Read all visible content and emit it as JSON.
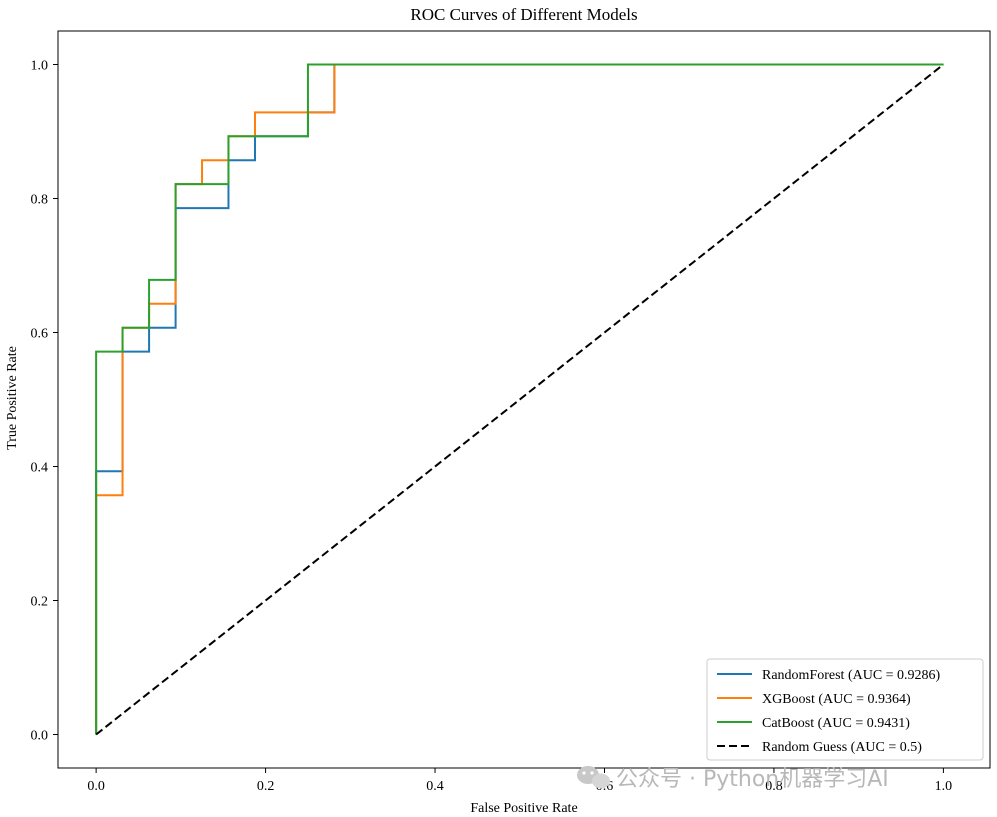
{
  "chart_data": {
    "type": "line",
    "title": "ROC Curves of Different Models",
    "xlabel": "False Positive Rate",
    "ylabel": "True Positive Rate",
    "xlim": [
      -0.045,
      1.055
    ],
    "ylim": [
      -0.05,
      1.05
    ],
    "xticks": [
      0.0,
      0.2,
      0.4,
      0.6,
      0.8,
      1.0
    ],
    "yticks": [
      0.0,
      0.2,
      0.4,
      0.6,
      0.8,
      1.0
    ],
    "tick_labels_x": [
      "0.0",
      "0.2",
      "0.4",
      "0.6",
      "0.8",
      "1.0"
    ],
    "tick_labels_y": [
      "0.0",
      "0.2",
      "0.4",
      "0.6",
      "0.8",
      "1.0"
    ],
    "grid": false,
    "legend_position": "bottom-right",
    "series": [
      {
        "name": "RandomForest (AUC = 0.9286)",
        "color": "#1f77b4",
        "style": "solid",
        "x": [
          0,
          0,
          0.0312,
          0.0312,
          0.0625,
          0.0625,
          0.0938,
          0.0938,
          0.1562,
          0.1562,
          0.1875,
          0.1875,
          0.25,
          0.25,
          0.2812,
          0.2812,
          1
        ],
        "y": [
          0,
          0.3929,
          0.3929,
          0.5714,
          0.5714,
          0.6071,
          0.6071,
          0.7857,
          0.7857,
          0.8571,
          0.8571,
          0.8929,
          0.8929,
          0.9286,
          0.9286,
          1,
          1
        ]
      },
      {
        "name": "XGBoost (AUC = 0.9364)",
        "color": "#ff7f0e",
        "style": "solid",
        "x": [
          0,
          0,
          0.0312,
          0.0312,
          0.0625,
          0.0625,
          0.0938,
          0.0938,
          0.125,
          0.125,
          0.1562,
          0.1562,
          0.1875,
          0.1875,
          0.2812,
          0.2812,
          1
        ],
        "y": [
          0,
          0.3571,
          0.3571,
          0.6071,
          0.6071,
          0.6429,
          0.6429,
          0.8214,
          0.8214,
          0.8571,
          0.8571,
          0.8929,
          0.8929,
          0.9286,
          0.9286,
          1,
          1
        ]
      },
      {
        "name": "CatBoost (AUC = 0.9431)",
        "color": "#2ca02c",
        "style": "solid",
        "x": [
          0,
          0,
          0.0312,
          0.0312,
          0.0625,
          0.0625,
          0.0938,
          0.0938,
          0.1562,
          0.1562,
          0.25,
          0.25,
          1
        ],
        "y": [
          0,
          0.5714,
          0.5714,
          0.6071,
          0.6071,
          0.6786,
          0.6786,
          0.8214,
          0.8214,
          0.8929,
          0.8929,
          1,
          1
        ]
      },
      {
        "name": "Random Guess (AUC = 0.5)",
        "color": "#000000",
        "style": "dashed",
        "x": [
          0,
          1
        ],
        "y": [
          0,
          1
        ]
      }
    ]
  },
  "watermark": {
    "text": "公众号 · Python机器学习AI",
    "icon": "wechat-icon"
  }
}
